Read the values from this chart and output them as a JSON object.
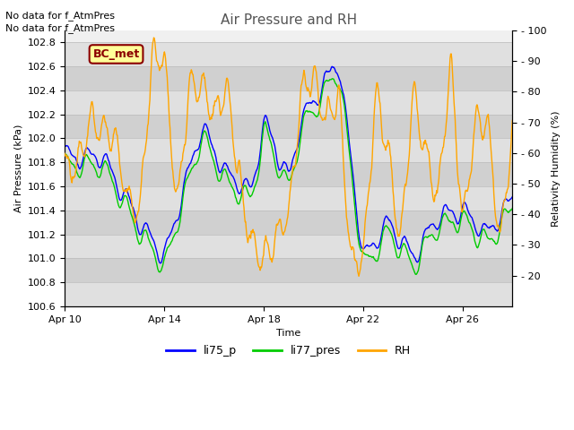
{
  "title": "Air Pressure and RH",
  "xlabel": "Time",
  "ylabel_left": "Air Pressure (kPa)",
  "ylabel_right": "Relativity Humidity (%)",
  "annotation1": "No data for f_AtmPres",
  "annotation2": "No data for f_AtmPres",
  "legend_label": "BC_met",
  "ylim_left": [
    100.6,
    102.9
  ],
  "ylim_right": [
    10,
    100
  ],
  "yticks_left": [
    100.6,
    100.8,
    101.0,
    101.2,
    101.4,
    101.6,
    101.8,
    102.0,
    102.2,
    102.4,
    102.6,
    102.8
  ],
  "yticks_right_vals": [
    20,
    30,
    40,
    50,
    60,
    70,
    80,
    90,
    100
  ],
  "yticks_right_labels": [
    "- 20",
    "- 30",
    "- 40",
    "- 50",
    "- 60",
    "- 70",
    "- 80",
    "- 90",
    "- 100"
  ],
  "xtick_labels": [
    "Apr 10",
    "Apr 14",
    "Apr 18",
    "Apr 22",
    "Apr 26"
  ],
  "color_li75": "#0000ff",
  "color_li77": "#00cc00",
  "color_rh": "#ffa500",
  "color_legend_box_bg": "#ffff99",
  "color_legend_box_edge": "#8B0000",
  "bg_color": "#ffffff",
  "band_colors": [
    "#e8e8e8",
    "#d8d8d8"
  ],
  "grid_color": "#c0c0c0",
  "legend_entries": [
    "li75_p",
    "li77_pres",
    "RH"
  ],
  "n_points": 800,
  "seed": 42
}
